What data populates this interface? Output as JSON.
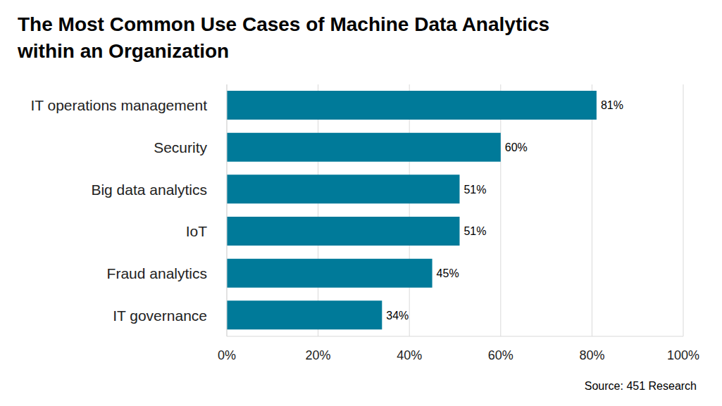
{
  "chart_data": {
    "type": "bar",
    "title": "The Most Common Use Cases of Machine Data Analytics within an Organization",
    "annotations": [
      "Source: 451 Research"
    ],
    "orientation": "horizontal",
    "categories": [
      "IT operations management",
      "Security",
      "Big data analytics",
      "IoT",
      "Fraud analytics",
      "IT governance"
    ],
    "values": [
      81,
      60,
      51,
      51,
      45,
      34
    ],
    "value_labels": [
      "81%",
      "60%",
      "51%",
      "51%",
      "45%",
      "34%"
    ],
    "color": "#007a99",
    "xlim": [
      0,
      100
    ],
    "xticks": [
      {
        "value": 0,
        "label": "0%"
      },
      {
        "value": 20,
        "label": "20%"
      },
      {
        "value": 40,
        "label": "40%"
      },
      {
        "value": 60,
        "label": "60%"
      },
      {
        "value": 80,
        "label": "80%"
      },
      {
        "value": 100,
        "label": "100%"
      }
    ],
    "grid": true,
    "data_labels": true
  }
}
